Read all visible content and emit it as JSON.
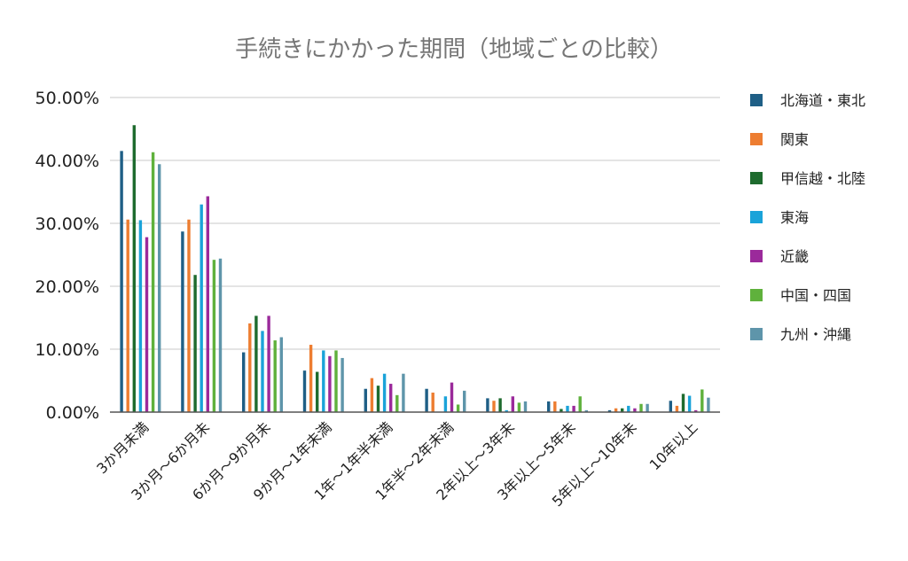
{
  "chart_data": {
    "type": "bar",
    "title": "手続きにかかった期間（地域ごとの比較）",
    "xlabel": "",
    "ylabel": "",
    "ylim": [
      0,
      50
    ],
    "yticks": [
      "0.00%",
      "10.00%",
      "20.00%",
      "30.00%",
      "40.00%",
      "50.00%"
    ],
    "grid": true,
    "legend_position": "right",
    "categories": [
      "3か月未満",
      "3か月～6か月未",
      "6か月～9か月未",
      "9か月～1年未満",
      "1年～1年半未満",
      "1年半～2年未満",
      "2年以上～3年未",
      "3年以上～5年未",
      "5年以上～10年未",
      "10年以上"
    ],
    "series": [
      {
        "name": "北海道・東北",
        "color": "#1f5f86",
        "values": [
          41.5,
          28.7,
          9.5,
          6.6,
          3.7,
          3.7,
          2.2,
          1.7,
          0.3,
          1.8
        ]
      },
      {
        "name": "関東",
        "color": "#ed7d31",
        "values": [
          30.6,
          30.6,
          14.1,
          10.7,
          5.4,
          3.1,
          1.8,
          1.7,
          0.6,
          1.0
        ]
      },
      {
        "name": "甲信越・北陸",
        "color": "#1e6b2e",
        "values": [
          45.6,
          21.8,
          15.3,
          6.4,
          4.2,
          0.0,
          2.2,
          0.5,
          0.6,
          2.9
        ]
      },
      {
        "name": "東海",
        "color": "#1aa3d9",
        "values": [
          30.5,
          33.0,
          12.9,
          9.8,
          6.1,
          2.5,
          0.3,
          1.0,
          1.0,
          2.6
        ]
      },
      {
        "name": "近畿",
        "color": "#9b2a9b",
        "values": [
          27.8,
          34.3,
          15.3,
          8.9,
          4.5,
          4.7,
          2.5,
          1.0,
          0.6,
          0.3
        ]
      },
      {
        "name": "中国・四国",
        "color": "#5fb13c",
        "values": [
          41.3,
          24.2,
          11.4,
          9.8,
          2.7,
          1.2,
          1.5,
          2.5,
          1.3,
          3.6
        ]
      },
      {
        "name": "九州・沖縄",
        "color": "#5e95aa",
        "values": [
          39.4,
          24.4,
          11.9,
          8.6,
          6.1,
          3.4,
          1.7,
          0.3,
          1.3,
          2.3
        ]
      }
    ]
  }
}
